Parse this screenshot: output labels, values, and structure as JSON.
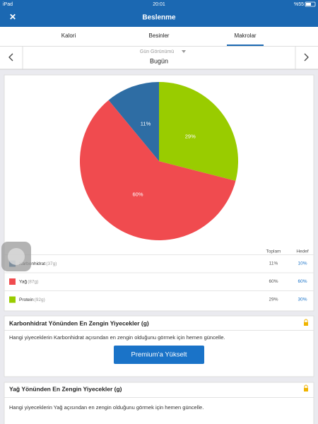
{
  "status_bar": {
    "device": "iPad",
    "time": "20:01",
    "battery": "%55"
  },
  "header": {
    "title": "Beslenme"
  },
  "tabs": [
    "Kalori",
    "Besinler",
    "Makrolar"
  ],
  "day_nav": {
    "label": "Gün Görünümü",
    "day": "Bugün"
  },
  "chart_data": {
    "type": "pie",
    "categories": [
      "Karbonhidrat",
      "Yağ",
      "Protein"
    ],
    "values": [
      11,
      60,
      29
    ],
    "value_labels": [
      "11%",
      "60%",
      "29%"
    ],
    "colors": [
      "#2e6da4",
      "#f04b4f",
      "#99cc00"
    ]
  },
  "table": {
    "headers": [
      "Toplam",
      "Hedef"
    ],
    "rows": [
      [
        "Karbonhidrat",
        "(37g)",
        "11%",
        "10%"
      ],
      [
        "Yağ",
        "(87g)",
        "60%",
        "60%"
      ],
      [
        "Protein",
        "(92g)",
        "29%",
        "30%"
      ]
    ]
  },
  "sections": [
    {
      "title": "Karbonhidrat Yönünden En Zengin Yiyecekler (g)",
      "text": "Hangi yiyeceklerin Karbonhidrat açısından en zengin olduğunu görmek için hemen güncelle.",
      "button": "Premium’a Yükselt"
    },
    {
      "title": "Yağ Yönünden En Zengin Yiyecekler (g)",
      "text": "Hangi yiyeceklerin Yağ açısından en zengin olduğunu görmek için hemen güncelle."
    }
  ]
}
